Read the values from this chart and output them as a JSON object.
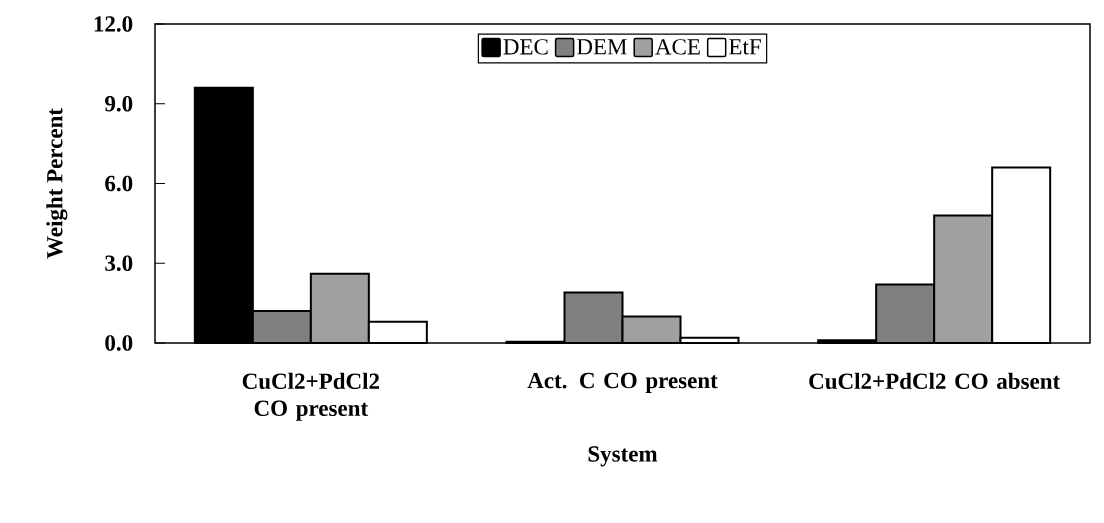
{
  "chart_data": {
    "type": "bar",
    "xlabel": "System",
    "ylabel": "Weight Percent",
    "categories": [
      "CuCl2+PdCl2 CO present",
      "Act. C CO present",
      "CuCl2+PdCl2 CO absent"
    ],
    "series": [
      {
        "name": "DEC",
        "color": "#000000",
        "values": [
          9.6,
          0.05,
          0.1
        ]
      },
      {
        "name": "DEM",
        "color": "#808080",
        "values": [
          1.2,
          1.9,
          2.2
        ]
      },
      {
        "name": "ACE",
        "color": "#a0a0a0",
        "values": [
          2.6,
          1.0,
          4.8
        ]
      },
      {
        "name": "EtF",
        "color": "#ffffff",
        "values": [
          0.8,
          0.2,
          6.6
        ]
      }
    ],
    "ylim": [
      0,
      12
    ],
    "yticks": [
      {
        "value": 0,
        "label": "0.0"
      },
      {
        "value": 3,
        "label": "3.0"
      },
      {
        "value": 6,
        "label": "6.0"
      },
      {
        "value": 9,
        "label": "9.0"
      },
      {
        "value": 12,
        "label": "12.0"
      }
    ],
    "legend": "top"
  }
}
